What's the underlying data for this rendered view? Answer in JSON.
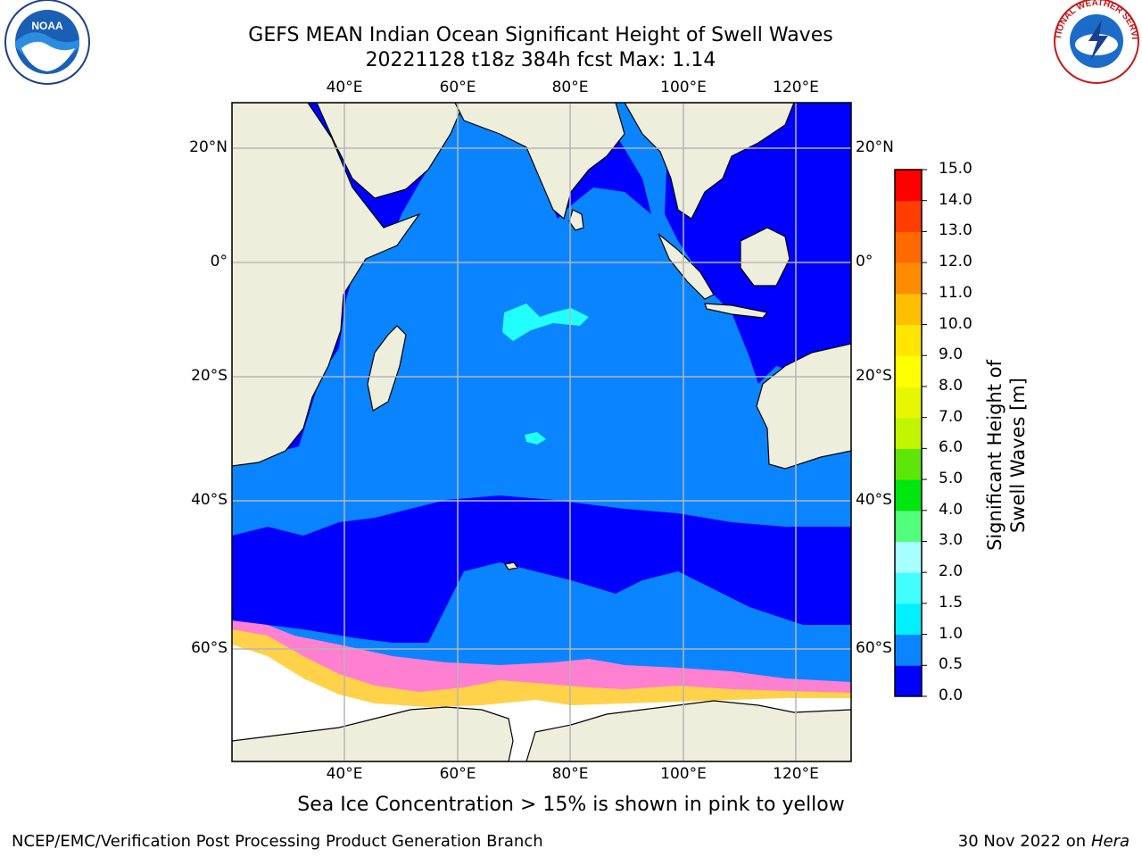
{
  "title": {
    "line1": "GEFS MEAN Indian Ocean Significant Height of Swell Waves",
    "line2": "20221128 t18z 384h fcst   Max: 1.14"
  },
  "logos": {
    "left": {
      "icon": "noaa-logo",
      "text": "NOAA"
    },
    "right": {
      "icon": "nws-logo",
      "text": "NATIONAL WEATHER SERVICE"
    }
  },
  "axes": {
    "lon_labels": [
      "40°E",
      "60°E",
      "80°E",
      "100°E",
      "120°E"
    ],
    "lat_labels": [
      "20°N",
      "0°",
      "20°S",
      "40°S",
      "60°S"
    ]
  },
  "colorbar": {
    "label": "Significant Height of Swell Waves [m]",
    "ticks": [
      "0.0",
      "0.5",
      "1.0",
      "1.5",
      "2.0",
      "3.0",
      "4.0",
      "5.0",
      "6.0",
      "7.0",
      "8.0",
      "9.0",
      "10.0",
      "11.0",
      "12.0",
      "13.0",
      "14.0",
      "15.0"
    ],
    "colors": [
      "#0000ff",
      "#0a85ff",
      "#00f0ff",
      "#42ffff",
      "#a8ffff",
      "#52ff7a",
      "#00e60f",
      "#5ee608",
      "#c2f500",
      "#e8f700",
      "#ffff00",
      "#ffe500",
      "#ffbf00",
      "#ff8c00",
      "#ff6a00",
      "#ff3d00",
      "#ff0000"
    ]
  },
  "colors": {
    "land": "#eeeedd",
    "ocean_low": "#0000ff",
    "ocean_mid": "#0a85ff",
    "ocean_cyan": "#22ffff",
    "ice_pink": "#ff7fd0",
    "ice_yellow": "#ffd24a"
  },
  "caption": "Sea Ice Concentration > 15% is shown in pink to yellow",
  "footer": {
    "left": "NCEP/EMC/Verification Post Processing Product Generation Branch",
    "right_prefix": "30 Nov 2022 on",
    "right_machine": "Hera"
  }
}
